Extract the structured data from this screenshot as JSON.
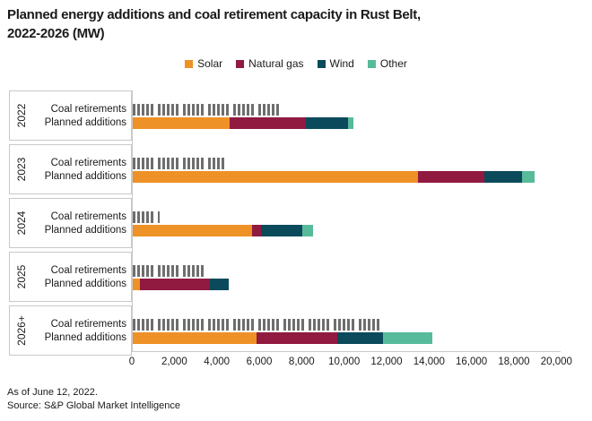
{
  "title_lines": [
    "Planned energy additions and coal retirement capacity in Rust Belt,",
    "2022-2026 (MW)"
  ],
  "legend": [
    {
      "label": "Solar",
      "color": "#EE9126"
    },
    {
      "label": "Natural gas",
      "color": "#901A40"
    },
    {
      "label": "Wind",
      "color": "#0B4A5A"
    },
    {
      "label": "Other",
      "color": "#57BA9B"
    }
  ],
  "row_labels": {
    "retirements": "Coal retirements",
    "additions": "Planned additions"
  },
  "chart_data": {
    "type": "bar",
    "orientation": "horizontal",
    "unit": "MW",
    "title": "Planned energy additions and coal retirement capacity in Rust Belt, 2022-2026 (MW)",
    "grid": false,
    "legend_position": "top-center",
    "coal_retirements_style": "gray vertical hatch stripes",
    "stack_order": [
      "Solar",
      "Natural gas",
      "Wind",
      "Other"
    ],
    "groups": [
      {
        "year": "2022",
        "coal_retirements": 6900,
        "additions": {
          "Solar": 4550,
          "Natural gas": 3600,
          "Wind": 1980,
          "Other": 250
        }
      },
      {
        "year": "2023",
        "coal_retirements": 4300,
        "additions": {
          "Solar": 13450,
          "Natural gas": 3130,
          "Wind": 1780,
          "Other": 550
        }
      },
      {
        "year": "2024",
        "coal_retirements": 1270,
        "additions": {
          "Solar": 5600,
          "Natural gas": 450,
          "Wind": 1950,
          "Other": 480
        }
      },
      {
        "year": "2025",
        "coal_retirements": 3450,
        "additions": {
          "Solar": 350,
          "Natural gas": 3270,
          "Wind": 900,
          "Other": 0
        }
      },
      {
        "year": "2026+",
        "coal_retirements": 11600,
        "additions": {
          "Solar": 5850,
          "Natural gas": 3800,
          "Wind": 2150,
          "Other": 2300
        }
      }
    ],
    "x_axis": {
      "min": 0,
      "max": 20000,
      "step": 2000,
      "tick_labels": [
        "0",
        "2,000",
        "4,000",
        "6,000",
        "8,000",
        "10,000",
        "12,000",
        "14,000",
        "16,000",
        "18,000",
        "20,000"
      ]
    }
  },
  "footer": {
    "as_of": "As of June 12, 2022.",
    "source": "Source: S&P Global Market Intelligence"
  }
}
